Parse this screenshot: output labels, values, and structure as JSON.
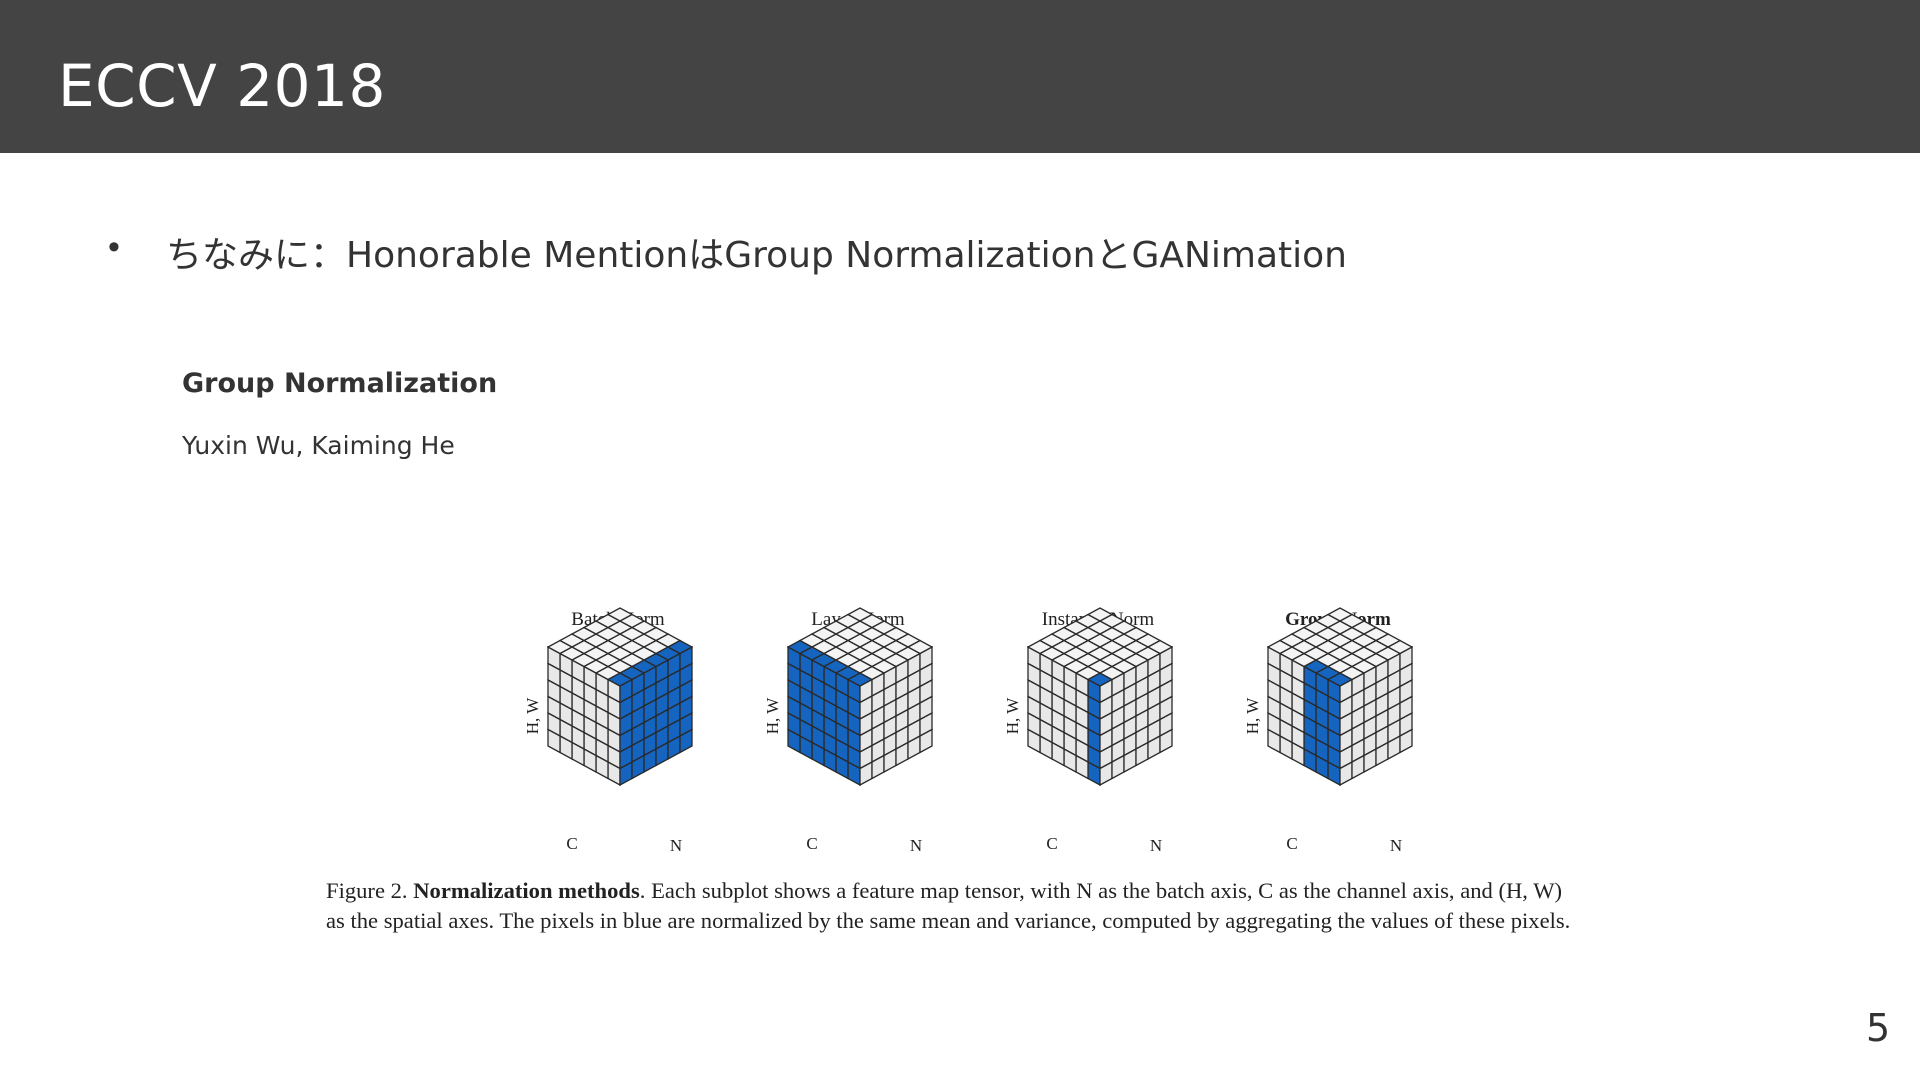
{
  "slide": {
    "title": "ECCV 2018",
    "bullet": "ちなみに：Honorable MentionはGroup NormalizationとGANimation",
    "page_number": "5"
  },
  "paper": {
    "title": "Group  Normalization",
    "authors": "Yuxin Wu, Kaiming He"
  },
  "figure": {
    "subplots": [
      {
        "title": "Batch Norm",
        "highlight": "batch"
      },
      {
        "title": "Layer Norm",
        "highlight": "layer"
      },
      {
        "title": "Instance Norm",
        "highlight": "instance"
      },
      {
        "title": "Group Norm",
        "highlight": "group",
        "bold": true
      }
    ],
    "axis_hw": "H, W",
    "axis_c": "C",
    "axis_n": "N",
    "colors": {
      "blue": "#1565c0",
      "light": "#e8e8e8",
      "lighttop": "#f4f4f4",
      "edge": "#2a2a2a"
    },
    "caption_line1_prefix": "Figure 2. ",
    "caption_line1_bold": "Normalization methods",
    "caption_line1_rest": ". Each subplot shows a feature map tensor, with N as the batch axis, C as the channel axis, and (H, W)",
    "caption_line2": "as the spatial axes. The pixels in blue are normalized by the same mean and variance, computed by aggregating the values of these pixels."
  }
}
